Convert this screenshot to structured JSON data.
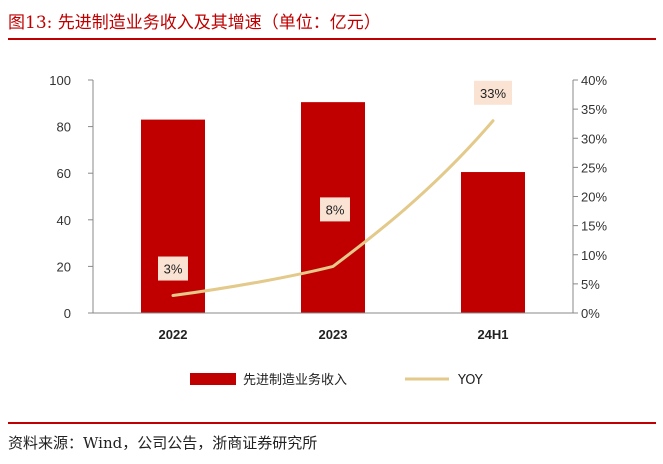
{
  "header": {
    "title": "图13:   先进制造业务收入及其增速（单位：亿元）"
  },
  "footer": {
    "source": "资料来源：Wind，公司公告，浙商证券研究所"
  },
  "colors": {
    "bar": "#c00000",
    "line": "#e3c98a",
    "label_bg": "#fbe3d4",
    "accent": "#c00000"
  },
  "chart_data": {
    "type": "bar+line",
    "categories": [
      "2022",
      "2023",
      "24H1"
    ],
    "series": [
      {
        "name": "先进制造业务收入",
        "type": "bar",
        "axis": "left",
        "values": [
          83,
          90.5,
          60.5
        ]
      },
      {
        "name": "YOY",
        "type": "line",
        "axis": "right",
        "values": [
          3,
          8,
          33
        ],
        "labels": [
          "3%",
          "8%",
          "33%"
        ]
      }
    ],
    "left_axis": {
      "min": 0,
      "max": 100,
      "ticks": [
        "0",
        "20",
        "40",
        "60",
        "80",
        "100"
      ]
    },
    "right_axis": {
      "min": 0,
      "max": 40,
      "ticks": [
        "0%",
        "5%",
        "10%",
        "15%",
        "20%",
        "25%",
        "30%",
        "35%",
        "40%"
      ]
    },
    "legend_position": "bottom"
  }
}
